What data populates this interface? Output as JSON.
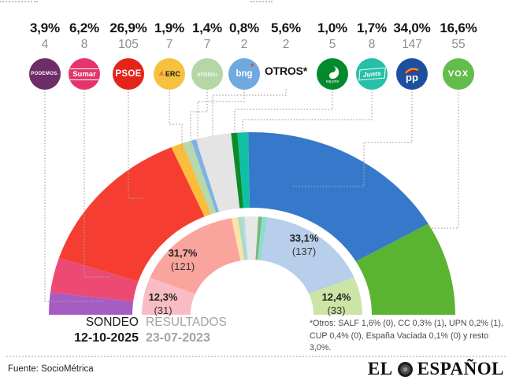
{
  "parties": [
    {
      "id": "podemos",
      "pct": "3,9%",
      "seats": "4",
      "logo_text": "PODEMOS.",
      "logo_bg": "#6e2d67"
    },
    {
      "id": "sumar",
      "pct": "6,2%",
      "seats": "8",
      "logo_text": "Sumar",
      "logo_bg": "#e5346b"
    },
    {
      "id": "psoe",
      "pct": "26,9%",
      "seats": "105",
      "logo_text": "PSOE",
      "logo_bg": "#e4241a"
    },
    {
      "id": "erc",
      "pct": "1,9%",
      "seats": "7",
      "logo_prefix": ".ıl.",
      "logo_text": "ERC",
      "logo_bg": "#f6c13e"
    },
    {
      "id": "ehbildu",
      "pct": "1,4%",
      "seats": "7",
      "logo_text": "ehbildu",
      "logo_bg": "#b5d7a6"
    },
    {
      "id": "bng",
      "pct": "0,8%",
      "seats": "2",
      "logo_text": "bng",
      "logo_star": "✶",
      "logo_bg": "#6fa9e0"
    },
    {
      "id": "otros",
      "pct": "5,6%",
      "seats": "2",
      "logo_text": "OTROS*"
    },
    {
      "id": "eaj-pnv",
      "pct": "1,0%",
      "seats": "5",
      "logo_text": "eaj-pnv",
      "logo_bg": "#038a2d"
    },
    {
      "id": "junts",
      "pct": "1,7%",
      "seats": "8",
      "logo_text": "Junts",
      "logo_bg": "#26c0a6"
    },
    {
      "id": "pp",
      "pct": "34,0%",
      "seats": "147",
      "logo_text": "pp",
      "logo_bg": "#1d4f9f"
    },
    {
      "id": "vox",
      "pct": "16,6%",
      "seats": "55",
      "logo_text": "VOX",
      "logo_bg": "#63bc4c"
    }
  ],
  "chart_data": {
    "type": "pie",
    "shape": "hemicycle-double-donut",
    "total_seats": 350,
    "angle_unit": "vote percentage mapped to 180 degrees",
    "outer_ring": {
      "name": "SONDEO 12-10-2025",
      "segments": [
        {
          "party": "Podemos",
          "pct": 3.9,
          "seats": 4,
          "color": "#a55cc3"
        },
        {
          "party": "Sumar",
          "pct": 6.2,
          "seats": 8,
          "color": "#ed4a73"
        },
        {
          "party": "PSOE",
          "pct": 26.9,
          "seats": 105,
          "color": "#f53d31"
        },
        {
          "party": "ERC",
          "pct": 1.9,
          "seats": 7,
          "color": "#fbbd3b"
        },
        {
          "party": "EH Bildu",
          "pct": 1.4,
          "seats": 7,
          "color": "#b7d8a8"
        },
        {
          "party": "BNG",
          "pct": 0.8,
          "seats": 2,
          "color": "#7fb2e3"
        },
        {
          "party": "Otros",
          "pct": 5.6,
          "seats": 2,
          "color": "#e4e4e4"
        },
        {
          "party": "EAJ-PNV",
          "pct": 1.0,
          "seats": 5,
          "color": "#0a8c28"
        },
        {
          "party": "Junts",
          "pct": 1.7,
          "seats": 8,
          "color": "#10c0a4"
        },
        {
          "party": "PP",
          "pct": 34.0,
          "seats": 147,
          "color": "#3679cb"
        },
        {
          "party": "VOX",
          "pct": 16.6,
          "seats": 55,
          "color": "#5ab432"
        }
      ]
    },
    "inner_ring": {
      "name": "RESULTADOS 23-07-2023",
      "segments": [
        {
          "party": "Sumar",
          "pct": 12.3,
          "seats": 31,
          "color": "#f9bcc4",
          "pct_label": "12,3%",
          "seats_label": "(31)"
        },
        {
          "party": "PSOE",
          "pct": 31.7,
          "seats": 121,
          "color": "#faa49e",
          "pct_label": "31,7%",
          "seats_label": "(121)"
        },
        {
          "party": "ERC",
          "pct": 1.9,
          "seats": 7,
          "color": "#fce3a9"
        },
        {
          "party": "EH Bildu",
          "pct": 1.4,
          "seats": 6,
          "color": "#a9dcc3"
        },
        {
          "party": "BNG",
          "pct": 0.6,
          "seats": 1,
          "color": "#bcd8f2"
        },
        {
          "party": "Otros",
          "pct": 3.9,
          "seats": 2,
          "color": "#e7e7e7"
        },
        {
          "party": "EAJ-PNV",
          "pct": 1.1,
          "seats": 5,
          "color": "#7ab87a"
        },
        {
          "party": "Junts",
          "pct": 1.6,
          "seats": 7,
          "color": "#8fdbcc"
        },
        {
          "party": "PP",
          "pct": 33.1,
          "seats": 137,
          "color": "#b7cfeb",
          "pct_label": "33,1%",
          "seats_label": "(137)"
        },
        {
          "party": "VOX",
          "pct": 12.4,
          "seats": 33,
          "color": "#cce4a5",
          "pct_label": "12,4%",
          "seats_label": "(33)"
        }
      ]
    }
  },
  "legend": {
    "sondeo_label": "SONDEO",
    "sondeo_date": "12-10-2025",
    "resultados_label": "RESULTADOS",
    "resultados_date": "23-07-2023"
  },
  "footnote": {
    "line1": "*Otros: SALF 1,6% (0), CC 0,3% (1), UPN 0,2% (1),",
    "line2": "CUP 0,4% (0), España Vaciada 0,1% (0) y resto 3,0%."
  },
  "footer": {
    "source": "Fuente: SocioMétrica",
    "brand_left": "EL",
    "brand_right": "ESPAÑOL"
  }
}
